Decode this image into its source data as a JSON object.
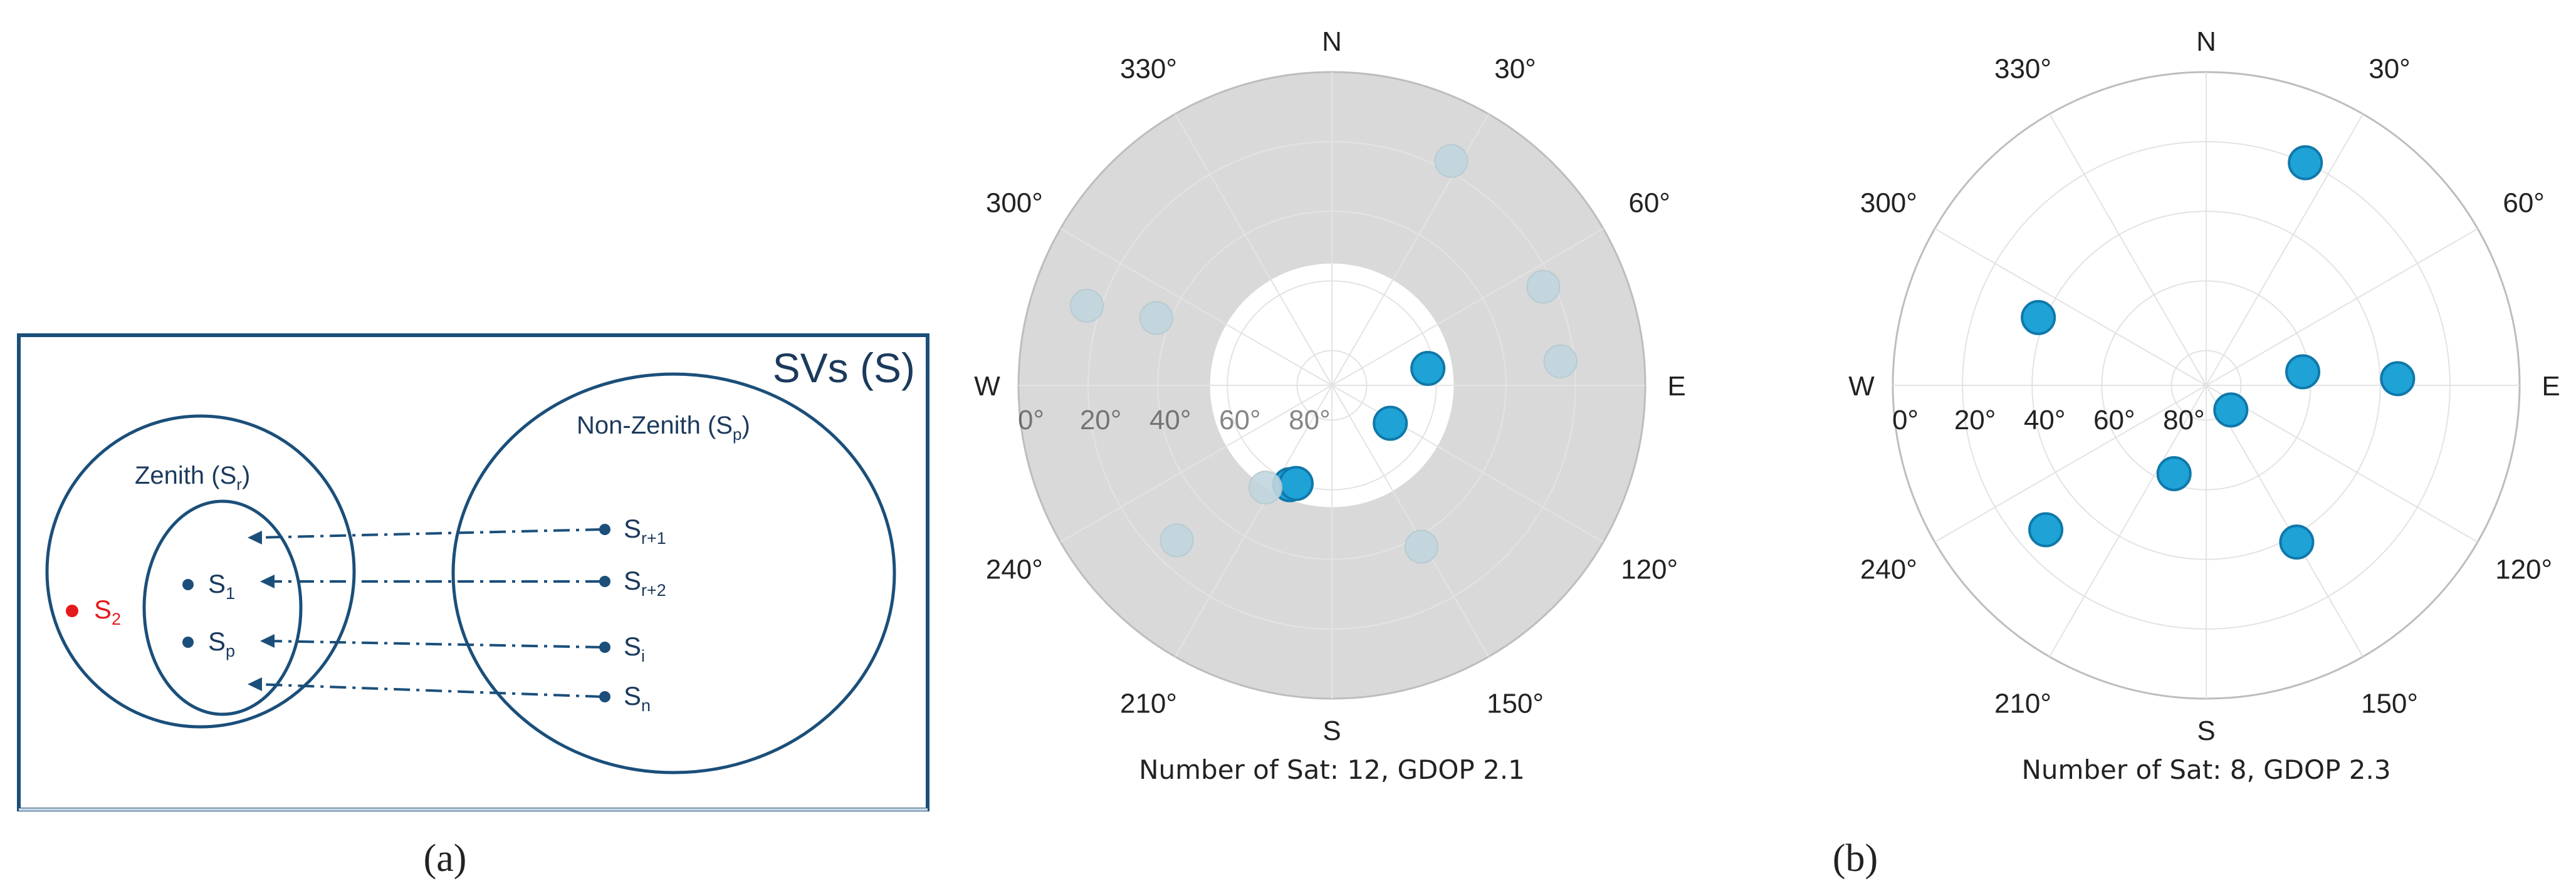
{
  "colors": {
    "frame": "#1b4f7a",
    "venn_text": "#1b3a5c",
    "highlight": "#e41a1c",
    "sat_fill": "#1fa2d6",
    "sat_stroke": "#0f78aa",
    "masked_fill": "#d9d9d9"
  },
  "venn": {
    "title": "SVs (S)",
    "zenith_set": {
      "label": "Zenith (S",
      "sub": "r",
      "close": ")"
    },
    "nonzenith_set": {
      "label": "Non-Zenith (S",
      "sub": "p",
      "close": ")"
    },
    "outlier": {
      "label": "S",
      "sub": "2"
    },
    "inner_items": [
      {
        "label": "S",
        "sub": "1"
      },
      {
        "label": "S",
        "sub": "p"
      }
    ],
    "outer_items": [
      {
        "label": "S",
        "sub": "r+1"
      },
      {
        "label": "S",
        "sub": "r+2"
      },
      {
        "label": "S",
        "sub": "i"
      },
      {
        "label": "S",
        "sub": "n"
      }
    ]
  },
  "panel_labels": {
    "a": "(a)",
    "b": "(b)"
  },
  "polar_common": {
    "cardinals": {
      "N": "N",
      "E": "E",
      "S": "S",
      "W": "W"
    },
    "angle_labels": [
      {
        "az": 30,
        "text": "30°"
      },
      {
        "az": 60,
        "text": "60°"
      },
      {
        "az": 120,
        "text": "120°"
      },
      {
        "az": 150,
        "text": "150°"
      },
      {
        "az": 210,
        "text": "210°"
      },
      {
        "az": 240,
        "text": "240°"
      },
      {
        "az": 300,
        "text": "300°"
      },
      {
        "az": 330,
        "text": "330°"
      }
    ],
    "elevation_labels": [
      "0°",
      "20°",
      "40°",
      "60°",
      "80°"
    ]
  },
  "chart_data": [
    {
      "type": "scatter",
      "projection": "polar skyplot (azimuth, elevation)",
      "caption": "Number of Sat: 12, GDOP 2.1",
      "elevation_mask_deg": 55,
      "satellites": [
        {
          "azimuth": 28,
          "elevation": 17,
          "used": false
        },
        {
          "azimuth": 65,
          "elevation": 23,
          "used": false
        },
        {
          "azimuth": 84,
          "elevation": 24,
          "used": false
        },
        {
          "azimuth": 80,
          "elevation": 62,
          "used": true
        },
        {
          "azimuth": 123,
          "elevation": 70,
          "used": true
        },
        {
          "azimuth": 203,
          "elevation": 59,
          "used": true
        },
        {
          "azimuth": 200,
          "elevation": 60,
          "used": true
        },
        {
          "azimuth": 213,
          "elevation": 55,
          "used": false
        },
        {
          "azimuth": 151,
          "elevation": 37,
          "used": false
        },
        {
          "azimuth": 225,
          "elevation": 27,
          "used": false
        },
        {
          "azimuth": 291,
          "elevation": 36,
          "used": false
        },
        {
          "azimuth": 288,
          "elevation": 16,
          "used": false
        }
      ]
    },
    {
      "type": "scatter",
      "projection": "polar skyplot (azimuth, elevation)",
      "caption": "Number of Sat: 8, GDOP 2.3",
      "satellites": [
        {
          "azimuth": 24,
          "elevation": 20,
          "used": true
        },
        {
          "azimuth": 292,
          "elevation": 38,
          "used": true
        },
        {
          "azimuth": 82,
          "elevation": 62,
          "used": true
        },
        {
          "azimuth": 88,
          "elevation": 35,
          "used": true
        },
        {
          "azimuth": 135,
          "elevation": 80,
          "used": true
        },
        {
          "azimuth": 200,
          "elevation": 63,
          "used": true
        },
        {
          "azimuth": 150,
          "elevation": 38,
          "used": true
        },
        {
          "azimuth": 228,
          "elevation": 28,
          "used": true
        }
      ]
    }
  ]
}
